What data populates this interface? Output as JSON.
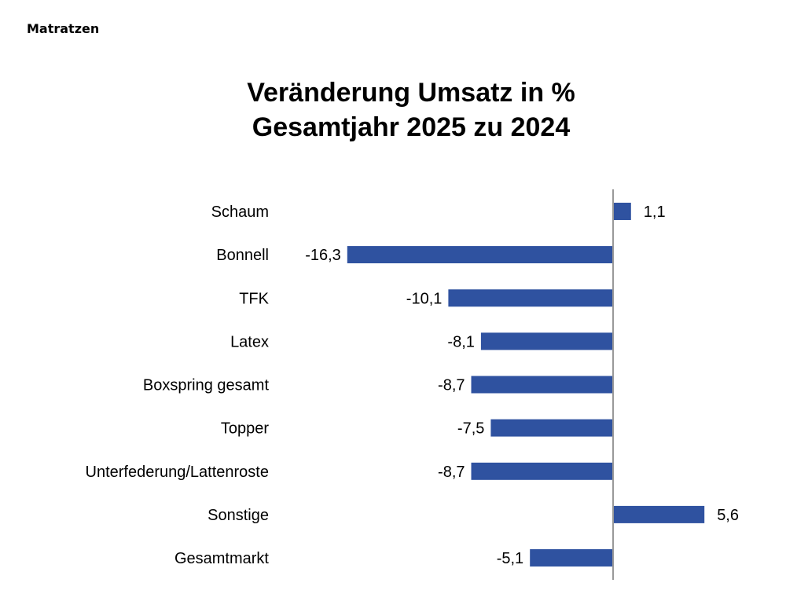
{
  "page": {
    "header": "Matratzen"
  },
  "chart_data": {
    "type": "bar",
    "orientation": "horizontal",
    "title": "Veränderung Umsatz in %",
    "subtitle": "Gesamtjahr 2025 zu 2024",
    "xlabel": "",
    "ylabel": "",
    "categories": [
      "Schaum",
      "Bonnell",
      "TFK",
      "Latex",
      "Boxspring gesamt",
      "Topper",
      "Unterfederung/Lattenroste",
      "Sonstige",
      "Gesamtmarkt"
    ],
    "values": [
      1.1,
      -16.3,
      -10.1,
      -8.1,
      -8.7,
      -7.5,
      -8.7,
      5.6,
      -5.1
    ],
    "value_labels": [
      "1,1",
      "-16,3",
      "-10,1",
      "-8,1",
      "-8,7",
      "-7,5",
      "-8,7",
      "5,6",
      "-5,1"
    ],
    "xlim": [
      -16.3,
      5.6
    ],
    "bar_color": "#2f52a0",
    "axis_color": "#999999",
    "grid": false,
    "legend": "none"
  }
}
